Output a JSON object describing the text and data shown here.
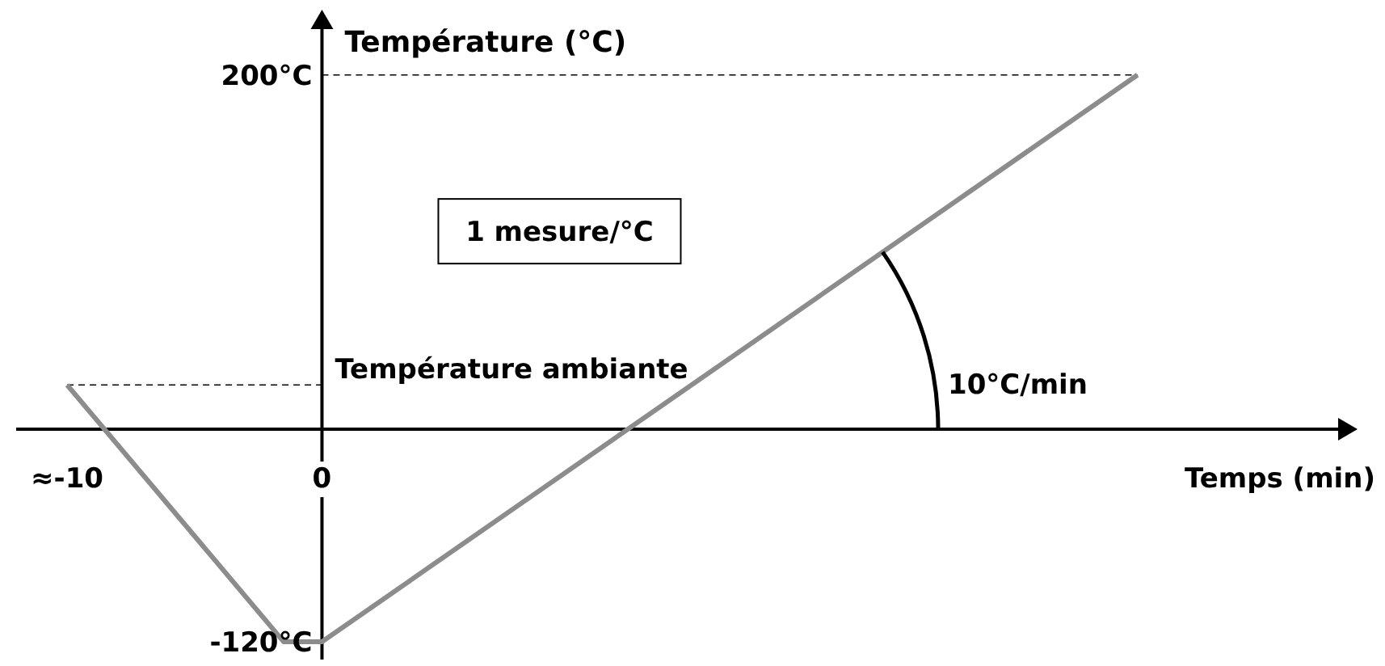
{
  "chart_data": {
    "type": "line",
    "xlabel": "Temps (min)",
    "ylabel": "Température (°C)",
    "x": [
      -10,
      -1.5,
      0,
      32
    ],
    "series": [
      {
        "color": "#8c8c8c",
        "values": [
          25,
          -120,
          -120,
          200
        ]
      }
    ],
    "xlim": [
      -12,
      40
    ],
    "ylim": [
      -130,
      235
    ],
    "xticks": [
      {
        "value": -10,
        "label": "≈-10"
      },
      {
        "value": 0,
        "label": "0"
      }
    ],
    "yticks": [
      {
        "value": 200,
        "label": "200°C"
      },
      {
        "value": -120,
        "label": "-120°C"
      }
    ],
    "ref_lines": [
      {
        "axis": "y",
        "value": 200,
        "label": null,
        "line_style": "dashed"
      },
      {
        "axis": "y",
        "value": 25,
        "label": "Température ambiante",
        "line_style": "dashed"
      }
    ],
    "annotations": [
      "1 mesure/°C",
      {
        "text": "10°C/min",
        "x": 22,
        "y": 100
      }
    ],
    "grid": false,
    "marker": "none",
    "line_style": "solid"
  }
}
